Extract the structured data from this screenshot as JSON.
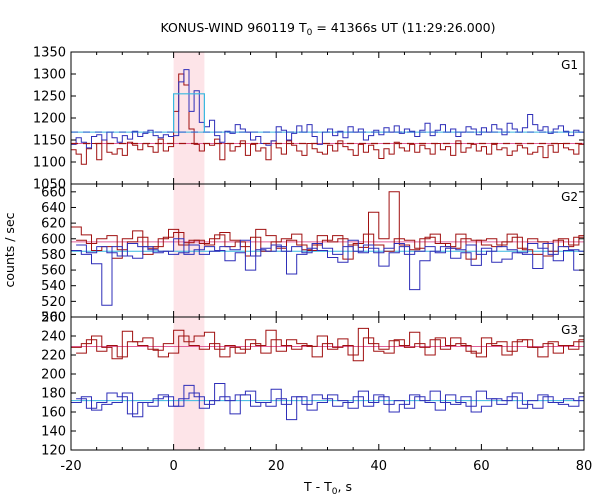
{
  "chart_data": {
    "type": "line",
    "title": "KONUS-WIND 960119 T",
    "title_sub": "0",
    "title_rest": " = 41366s UT (11:29:26.000)",
    "xlabel": "T - T",
    "xlabel_sub": "0",
    "xlabel_rest": ", s",
    "ylabel": "counts / sec",
    "xlim": [
      -20,
      80
    ],
    "xticks": [
      "-20",
      "0",
      "20",
      "40",
      "60",
      "80"
    ],
    "highlight_interval": [
      0,
      6
    ],
    "colors": {
      "red_series": "#a01010",
      "blue_series": "#2e2eb8",
      "red_background": "#e0609a",
      "blue_background": "#38b8e0",
      "highlight": "#fde4e8"
    },
    "panels": [
      {
        "label": "G1",
        "ylim": [
          1050,
          1350
        ],
        "yticks": [
          "1050",
          "1100",
          "1150",
          "1200",
          "1250",
          "1300",
          "1350"
        ],
        "red_background_level": 1142,
        "blue_background_level": 1168,
        "blue_highlight_level": 1255,
        "series": [
          {
            "color_key": "red",
            "step": 1,
            "x_start": -20,
            "values": [
              1128,
              1118,
              1095,
              1130,
              1142,
              1105,
              1150,
              1122,
              1118,
              1130,
              1115,
              1145,
              1138,
              1128,
              1142,
              1135,
              1122,
              1152,
              1125,
              1135,
              1215,
              1300,
              1275,
              1175,
              1140,
              1125,
              1142,
              1138,
              1152,
              1105,
              1142,
              1125,
              1135,
              1148,
              1115,
              1140,
              1125,
              1132,
              1105,
              1148,
              1132,
              1118,
              1148,
              1138,
              1125,
              1115,
              1142,
              1130,
              1122,
              1118,
              1138,
              1125,
              1148,
              1135,
              1128,
              1115,
              1140,
              1122,
              1138,
              1128,
              1108,
              1130,
              1118,
              1145,
              1132,
              1125,
              1140,
              1122,
              1138,
              1130,
              1118,
              1142,
              1128,
              1135,
              1115,
              1148,
              1122,
              1132,
              1140,
              1125,
              1135,
              1118,
              1140,
              1128,
              1132,
              1115,
              1125,
              1138,
              1132,
              1118,
              1122,
              1135,
              1110,
              1138,
              1122,
              1142,
              1132,
              1128,
              1118,
              1140
            ]
          },
          {
            "color_key": "blue",
            "step": 1,
            "x_start": -20,
            "values": [
              1140,
              1155,
              1145,
              1132,
              1158,
              1162,
              1150,
              1168,
              1155,
              1145,
              1160,
              1152,
              1170,
              1158,
              1165,
              1172,
              1160,
              1155,
              1162,
              1158,
              1160,
              1282,
              1310,
              1215,
              1262,
              1190,
              1180,
              1195,
              1160,
              1145,
              1170,
              1165,
              1185,
              1175,
              1168,
              1150,
              1158,
              1142,
              1138,
              1148,
              1180,
              1172,
              1150,
              1165,
              1182,
              1168,
              1185,
              1158,
              1140,
              1168,
              1175,
              1160,
              1170,
              1155,
              1180,
              1168,
              1175,
              1150,
              1160,
              1172,
              1162,
              1178,
              1168,
              1182,
              1165,
              1175,
              1170,
              1158,
              1172,
              1188,
              1160,
              1172,
              1185,
              1168,
              1175,
              1158,
              1168,
              1180,
              1175,
              1162,
              1178,
              1168,
              1185,
              1175,
              1162,
              1188,
              1175,
              1168,
              1178,
              1208,
              1185,
              1172,
              1180,
              1165,
              1175,
              1182,
              1170,
              1160,
              1172,
              1168
            ]
          }
        ]
      },
      {
        "label": "G2",
        "ylim": [
          500,
          670
        ],
        "yticks": [
          "500",
          "520",
          "540",
          "560",
          "580",
          "600",
          "620",
          "640",
          "660"
        ],
        "red_background_level": 596,
        "blue_background_level": 584,
        "series": [
          {
            "color_key": "red",
            "step": 2,
            "x_start": -20,
            "values": [
              615,
              605,
              585,
              590,
              575,
              600,
              610,
              580,
              590,
              602,
              608,
              595,
              598,
              592,
              605,
              590,
              596,
              578,
              612,
              604,
              588,
              598,
              592,
              585,
              604,
              596,
              600,
              592,
              589,
              634,
              600,
              660,
              592,
              586,
              600,
              606,
              594,
              588,
              600,
              598,
              592,
              590,
              596,
              602,
              586,
              580,
              578,
              598,
              590,
              602
            ]
          },
          {
            "color_key": "red",
            "step": 2,
            "x_start": -19,
            "values": [
              598,
              594,
              600,
              604,
              586,
              596,
              602,
              588,
              600,
              612,
              592,
              598,
              594,
              600,
              608,
              598,
              590,
              602,
              584,
              596,
              600,
              606,
              586,
              592,
              598,
              604,
              574,
              594,
              606,
              592,
              584,
              600,
              598,
              588,
              602,
              594,
              590,
              606,
              574,
              598,
              600,
              592,
              606,
              588,
              600,
              596,
              584,
              600,
              592,
              604
            ]
          },
          {
            "color_key": "blue",
            "step": 2,
            "x_start": -20,
            "values": [
              585,
              580,
              568,
              515,
              590,
              578,
              575,
              590,
              582,
              584,
              600,
              580,
              586,
              590,
              585,
              572,
              582,
              560,
              586,
              584,
              590,
              555,
              580,
              588,
              585,
              576,
              570,
              598,
              582,
              588,
              565,
              582,
              590,
              535,
              572,
              584,
              590,
              575,
              582,
              566,
              588,
              570,
              574,
              582,
              580,
              562,
              594,
              572,
              585,
              560
            ]
          },
          {
            "color_key": "blue",
            "step": 2,
            "x_start": -19,
            "values": [
              592,
              582,
              590,
              582,
              578,
              594,
              590,
              586,
              584,
              580,
              582,
              592,
              580,
              584,
              590,
              586,
              598,
              578,
              588,
              592,
              584,
              590,
              582,
              594,
              588,
              580,
              590,
              584,
              592,
              582,
              588,
              594,
              580,
              584,
              590,
              582,
              588,
              586,
              592,
              580,
              584,
              590,
              586,
              582,
              594,
              588,
              580,
              590,
              586,
              584
            ]
          }
        ]
      },
      {
        "label": "G3",
        "ylim": [
          120,
          260
        ],
        "yticks": [
          "120",
          "140",
          "160",
          "180",
          "200",
          "220",
          "240",
          "260"
        ],
        "red_background_level": 229,
        "blue_background_level": 172,
        "series": [
          {
            "color_key": "red",
            "step": 2,
            "x_start": -20,
            "values": [
              228,
              232,
              240,
              228,
              216,
              245,
              234,
              238,
              225,
              232,
              246,
              234,
              240,
              244,
              226,
              230,
              222,
              236,
              230,
              246,
              224,
              236,
              232,
              229,
              240,
              226,
              237,
              220,
              248,
              232,
              226,
              235,
              230,
              244,
              228,
              236,
              226,
              238,
              230,
              222,
              238,
              230,
              220,
              234,
              236,
              228,
              232,
              222,
              230,
              234
            ]
          },
          {
            "color_key": "red",
            "step": 2,
            "x_start": -19,
            "values": [
              222,
              236,
              224,
              230,
              218,
              234,
              230,
              226,
              218,
              222,
              240,
              230,
              226,
              232,
              218,
              228,
              226,
              232,
              222,
              236,
              230,
              226,
              230,
              218,
              232,
              228,
              230,
              214,
              238,
              224,
              222,
              236,
              228,
              232,
              220,
              238,
              230,
              232,
              224,
              218,
              232,
              234,
              224,
              236,
              228,
              218,
              234,
              230,
              226,
              236
            ]
          },
          {
            "color_key": "blue",
            "step": 2,
            "x_start": -20,
            "values": [
              170,
              176,
              162,
              168,
              170,
              180,
              155,
              170,
              174,
              176,
              166,
              188,
              176,
              168,
              190,
              172,
              178,
              182,
              170,
              166,
              174,
              152,
              176,
              162,
              170,
              178,
              172,
              164,
              182,
              170,
              176,
              160,
              168,
              178,
              172,
              182,
              170,
              168,
              176,
              160,
              166,
              174,
              172,
              180,
              168,
              164,
              176,
              170,
              174,
              172
            ]
          },
          {
            "color_key": "blue",
            "step": 2,
            "x_start": -19,
            "values": [
              174,
              164,
              170,
              180,
              176,
              158,
              170,
              166,
              178,
              166,
              174,
              180,
              164,
              172,
              176,
              158,
              178,
              166,
              170,
              184,
              168,
              176,
              168,
              178,
              174,
              166,
              170,
              176,
              166,
              178,
              168,
              172,
              164,
              176,
              170,
              162,
              178,
              170,
              166,
              182,
              174,
              168,
              176,
              164,
              172,
              178,
              170,
              168,
              166,
              176
            ]
          }
        ]
      }
    ]
  }
}
